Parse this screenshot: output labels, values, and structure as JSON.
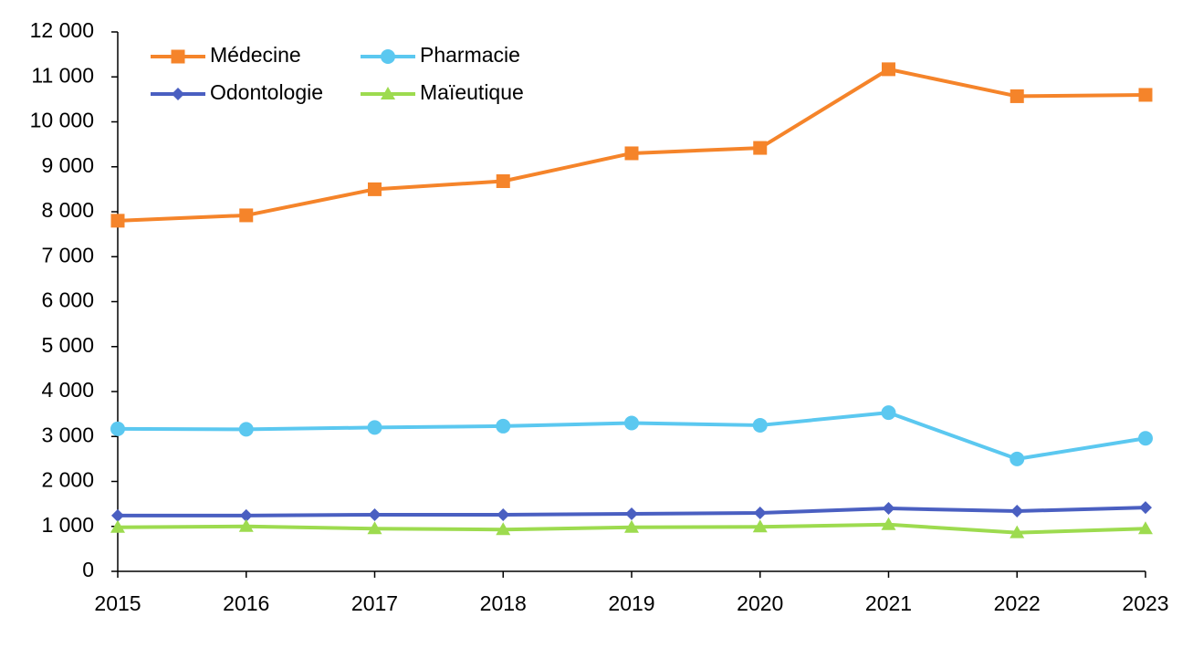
{
  "chart_data": {
    "type": "line",
    "categories": [
      "2015",
      "2016",
      "2017",
      "2018",
      "2019",
      "2020",
      "2021",
      "2022",
      "2023"
    ],
    "series": [
      {
        "name": "Médecine",
        "color": "#f5842a",
        "marker": "square",
        "values": [
          7800,
          7920,
          8500,
          8680,
          9300,
          9420,
          11170,
          10570,
          10600
        ]
      },
      {
        "name": "Pharmacie",
        "color": "#5bc8f0",
        "marker": "circle",
        "values": [
          3170,
          3160,
          3200,
          3230,
          3300,
          3250,
          3530,
          2500,
          2960
        ]
      },
      {
        "name": "Odontologie",
        "color": "#4a5fc1",
        "marker": "diamond",
        "values": [
          1240,
          1240,
          1260,
          1260,
          1280,
          1300,
          1400,
          1340,
          1420
        ]
      },
      {
        "name": "Maïeutique",
        "color": "#9ddb4f",
        "marker": "triangle",
        "values": [
          980,
          1000,
          950,
          930,
          980,
          990,
          1040,
          860,
          950
        ]
      }
    ],
    "ylim": [
      0,
      12000
    ],
    "yticks": [
      0,
      {
        "value": 1000,
        "label": "1 000"
      },
      {
        "value": 2000,
        "label": "2 000"
      },
      {
        "value": 3000,
        "label": "3 000"
      },
      {
        "value": 4000,
        "label": "4 000"
      },
      {
        "value": 5000,
        "label": "5 000"
      },
      {
        "value": 6000,
        "label": "6 000"
      },
      {
        "value": 7000,
        "label": "7 000"
      },
      {
        "value": 8000,
        "label": "8 000"
      },
      {
        "value": 9000,
        "label": "9 000"
      },
      {
        "value": 10000,
        "label": "10 000"
      },
      {
        "value": 11000,
        "label": "11 000"
      },
      {
        "value": 12000,
        "label": "12 000"
      }
    ],
    "grid": false,
    "legend": "top-left"
  }
}
